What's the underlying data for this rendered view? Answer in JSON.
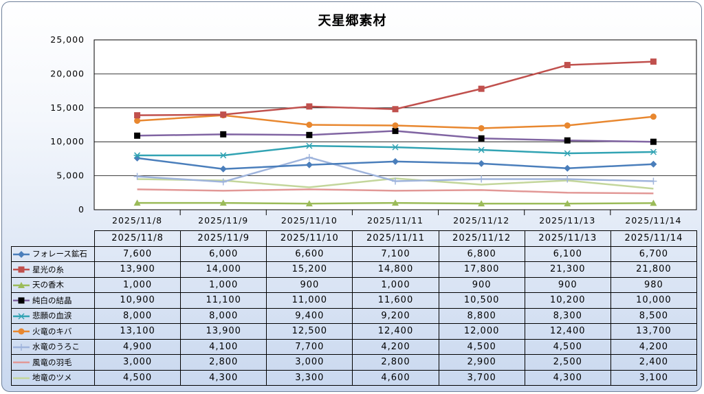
{
  "chart_data": {
    "type": "line",
    "title": "天星郷素材",
    "categories": [
      "2025/11/8",
      "2025/11/9",
      "2025/11/10",
      "2025/11/11",
      "2025/11/12",
      "2025/11/13",
      "2025/11/14"
    ],
    "ylim": [
      0,
      25000
    ],
    "yticks": [
      "0",
      "5,000",
      "10,000",
      "15,000",
      "20,000",
      "25,000"
    ],
    "grid": true,
    "legend": "data-table",
    "series": [
      {
        "name": "フォレース鉱石",
        "color": "#4a7ebb",
        "marker": "diamond",
        "values": [
          7600,
          6000,
          6600,
          7100,
          6800,
          6100,
          6700
        ],
        "display": [
          "7,600",
          "6,000",
          "6,600",
          "7,100",
          "6,800",
          "6,100",
          "6,700"
        ]
      },
      {
        "name": "星光の糸",
        "color": "#c0504d",
        "marker": "square",
        "values": [
          13900,
          14000,
          15200,
          14800,
          17800,
          21300,
          21800
        ],
        "display": [
          "13,900",
          "14,000",
          "15,200",
          "14,800",
          "17,800",
          "21,300",
          "21,800"
        ]
      },
      {
        "name": "天の香木",
        "color": "#9bbb59",
        "marker": "triangle",
        "values": [
          1000,
          1000,
          900,
          1000,
          900,
          900,
          980
        ],
        "display": [
          "1,000",
          "1,000",
          "900",
          "1,000",
          "900",
          "900",
          "980"
        ]
      },
      {
        "name": "純白の結晶",
        "color": "#8064a2",
        "marker": "blacksquare",
        "values": [
          10900,
          11100,
          11000,
          11600,
          10500,
          10200,
          10000
        ],
        "display": [
          "10,900",
          "11,100",
          "11,000",
          "11,600",
          "10,500",
          "10,200",
          "10,000"
        ]
      },
      {
        "name": "悲願の血涙",
        "color": "#31a3b3",
        "marker": "star",
        "values": [
          8000,
          8000,
          9400,
          9200,
          8800,
          8300,
          8500
        ],
        "display": [
          "8,000",
          "8,000",
          "9,400",
          "9,200",
          "8,800",
          "8,300",
          "8,500"
        ]
      },
      {
        "name": "火竜のキバ",
        "color": "#e8872f",
        "marker": "circle",
        "values": [
          13100,
          13900,
          12500,
          12400,
          12000,
          12400,
          13700
        ],
        "display": [
          "13,100",
          "13,900",
          "12,500",
          "12,400",
          "12,000",
          "12,400",
          "13,700"
        ]
      },
      {
        "name": "水竜のうろこ",
        "color": "#9fb4dc",
        "marker": "plus",
        "values": [
          4900,
          4100,
          7700,
          4200,
          4500,
          4500,
          4200
        ],
        "display": [
          "4,900",
          "4,100",
          "7,700",
          "4,200",
          "4,500",
          "4,500",
          "4,200"
        ]
      },
      {
        "name": "風竜の羽毛",
        "color": "#e29896",
        "marker": "none",
        "values": [
          3000,
          2800,
          3000,
          2800,
          2900,
          2500,
          2400
        ],
        "display": [
          "3,000",
          "2,800",
          "3,000",
          "2,800",
          "2,900",
          "2,500",
          "2,400"
        ]
      },
      {
        "name": "地竜のツメ",
        "color": "#c3d69b",
        "marker": "none",
        "values": [
          4500,
          4300,
          3300,
          4600,
          3700,
          4300,
          3100
        ],
        "display": [
          "4,500",
          "4,300",
          "3,300",
          "4,600",
          "3,700",
          "4,300",
          "3,100"
        ]
      }
    ]
  }
}
